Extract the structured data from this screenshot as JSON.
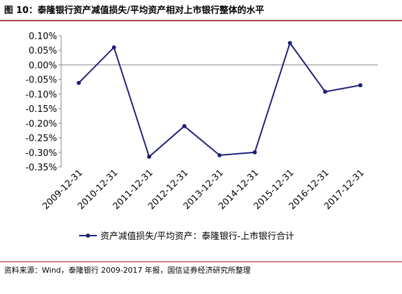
{
  "chart_data": {
    "type": "line",
    "title": "图 10：泰隆银行资产减值损失/平均资产相对上市银行整体的水平",
    "categories": [
      "2009-12-31",
      "2010-12-31",
      "2011-12-31",
      "2012-12-31",
      "2013-12-31",
      "2014-12-31",
      "2015-12-31",
      "2016-12-31",
      "2017-12-31"
    ],
    "series": [
      {
        "name": "资产减值损失/平均资产：泰隆银行-上市银行合计",
        "color": "#1f1f7a",
        "values": [
          -0.062,
          0.06,
          -0.315,
          -0.21,
          -0.31,
          -0.3,
          0.075,
          -0.092,
          -0.07
        ]
      }
    ],
    "ylim": [
      -0.35,
      0.1
    ],
    "yticks": [
      {
        "value": -0.35,
        "label": "-0.35%"
      },
      {
        "value": -0.3,
        "label": "-0.30%"
      },
      {
        "value": -0.25,
        "label": "-0.25%"
      },
      {
        "value": -0.2,
        "label": "-0.20%"
      },
      {
        "value": -0.15,
        "label": "-0.15%"
      },
      {
        "value": -0.1,
        "label": "-0.10%"
      },
      {
        "value": -0.05,
        "label": "-0.05%"
      },
      {
        "value": 0,
        "label": "0.00%"
      },
      {
        "value": 0.05,
        "label": "0.05%"
      },
      {
        "value": 0.1,
        "label": "0.10%"
      }
    ],
    "grid": false,
    "legend": "bottom",
    "source": "资料来源：Wind，泰隆银行 2009-2017 年报，国信证券经济研究所整理"
  }
}
